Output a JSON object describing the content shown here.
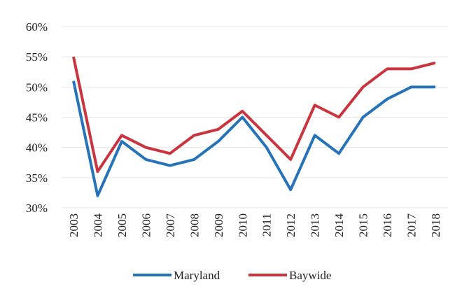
{
  "chart_data": {
    "type": "line",
    "categories": [
      "2003",
      "2004",
      "2005",
      "2006",
      "2007",
      "2008",
      "2009",
      "2010",
      "2011",
      "2012",
      "2013",
      "2014",
      "2015",
      "2016",
      "2017",
      "2018"
    ],
    "series": [
      {
        "name": "Maryland",
        "color": "#2673b8",
        "values": [
          51,
          32,
          41,
          38,
          37,
          38,
          41,
          45,
          40,
          33,
          42,
          39,
          45,
          48,
          50,
          50
        ]
      },
      {
        "name": "Baywide",
        "color": "#c9343f",
        "values": [
          55,
          36,
          42,
          40,
          39,
          42,
          43,
          46,
          42,
          38,
          47,
          45,
          50,
          53,
          53,
          54
        ]
      }
    ],
    "ylim": [
      30,
      60
    ],
    "yticks": [
      {
        "value": 30,
        "label": "30%"
      },
      {
        "value": 35,
        "label": "35%"
      },
      {
        "value": 40,
        "label": "40%"
      },
      {
        "value": 45,
        "label": "45%"
      },
      {
        "value": 50,
        "label": "50%"
      },
      {
        "value": 55,
        "label": "55%"
      },
      {
        "value": 60,
        "label": "60%"
      }
    ],
    "grid": true,
    "legend": "bottom"
  }
}
